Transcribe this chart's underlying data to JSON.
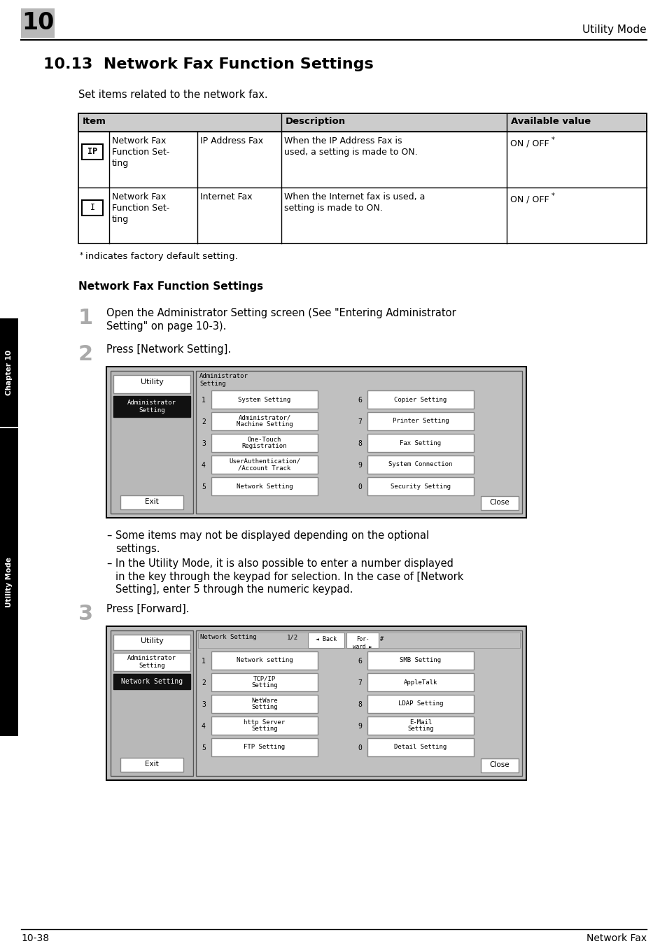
{
  "page_num": "10",
  "header_right": "Utility Mode",
  "section_title": "10.13  Network Fax Function Settings",
  "intro_text": "Set items related to the network fax.",
  "footnote_star": "*",
  "footnote_text": " indicates factory default setting.",
  "subtitle2": "Network Fax Function Settings",
  "step1_text": "Open the Administrator Setting screen (See \"Entering Administrator\nSetting\" on page 10-3).",
  "step2_text": "Press [Network Setting].",
  "bullet1": "Some items may not be displayed depending on the optional\nsettings.",
  "bullet2": "In the Utility Mode, it is also possible to enter a number displayed\nin the key through the keypad for selection. In the case of [Network\nSetting], enter 5 through the numeric keypad.",
  "step3_text": "Press [Forward].",
  "footer_left": "10-38",
  "footer_right": "Network Fax",
  "bg_color": "#ffffff"
}
